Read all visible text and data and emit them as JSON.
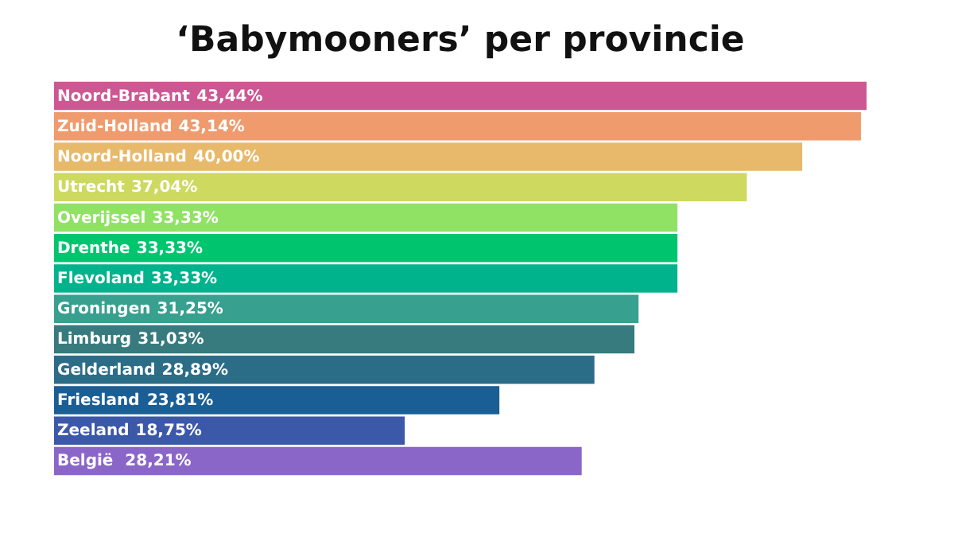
{
  "chart_data": {
    "type": "bar",
    "orientation": "horizontal",
    "title": "‘Babymooners’ per provincie",
    "categories": [
      "Noord-Brabant",
      "Zuid-Holland",
      "Noord-Holland",
      "Utrecht",
      "Overijssel",
      "Drenthe",
      "Flevoland",
      "Groningen",
      "Limburg",
      "Gelderland",
      "Friesland",
      "Zeeland",
      "België "
    ],
    "values": [
      43.44,
      43.14,
      40.0,
      37.04,
      33.33,
      33.33,
      33.33,
      31.25,
      31.03,
      28.89,
      23.81,
      18.75,
      28.21
    ],
    "value_labels": [
      "43,44%",
      "43,14%",
      "40,00%",
      "37,04%",
      "33,33%",
      "33,33%",
      "33,33%",
      "31,25%",
      "31,03%",
      "28,89%",
      "23,81%",
      "18,75%",
      "28,21%"
    ],
    "colors": [
      "#cc5792",
      "#ef9b6e",
      "#e8b96a",
      "#cdd95f",
      "#90e264",
      "#00c56f",
      "#00b38d",
      "#37a08f",
      "#377b7e",
      "#2b6c87",
      "#1a5e96",
      "#3c58a8",
      "#8a66c8"
    ]
  }
}
